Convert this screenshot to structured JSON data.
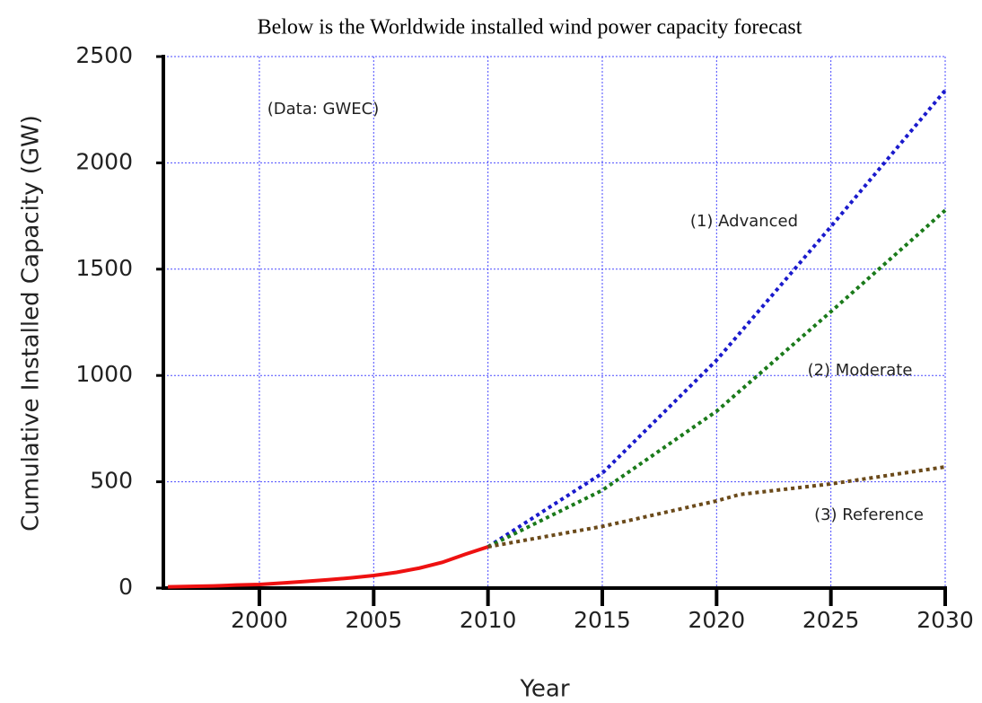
{
  "chart_data": {
    "type": "line",
    "title": "Below is the Worldwide installed wind power capacity forecast",
    "xlabel": "Year",
    "ylabel": "Cumulative Installed Capacity (GW)",
    "annotation": "(Data: GWEC)",
    "xlim": [
      1995.8,
      2030
    ],
    "xticks": [
      2000,
      2005,
      2010,
      2015,
      2020,
      2025,
      2030
    ],
    "ylim": [
      0,
      2500
    ],
    "yticks": [
      0,
      500,
      1000,
      1500,
      2000,
      2500
    ],
    "grid": true,
    "series": [
      {
        "color": "#ee1111",
        "style": "solid",
        "x": [
          1996,
          1997,
          1998,
          1999,
          2000,
          2001,
          2002,
          2003,
          2004,
          2005,
          2006,
          2007,
          2008,
          2009,
          2010
        ],
        "values": [
          6,
          8,
          10,
          14,
          17,
          24,
          31,
          39,
          48,
          59,
          74,
          94,
          121,
          159,
          194
        ]
      },
      {
        "name": "(1) Advanced",
        "color": "#1a1acc",
        "style": "dotted",
        "x": [
          2010,
          2015,
          2020,
          2025,
          2030
        ],
        "values": [
          194,
          540,
          1072,
          1700,
          2341
        ]
      },
      {
        "name": "(2) Moderate",
        "color": "#1a7a1a",
        "style": "dotted",
        "x": [
          2010,
          2015,
          2020,
          2025,
          2030
        ],
        "values": [
          194,
          460,
          832,
          1300,
          1777
        ]
      },
      {
        "name": "(3) Reference",
        "color": "#6b4a1a",
        "style": "dotted",
        "x": [
          2010,
          2015,
          2020,
          2021,
          2025,
          2030
        ],
        "values": [
          194,
          290,
          410,
          440,
          490,
          570
        ]
      }
    ]
  }
}
